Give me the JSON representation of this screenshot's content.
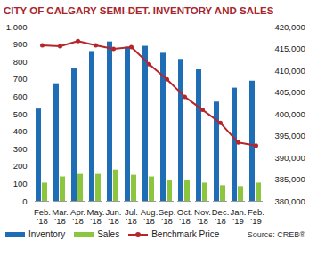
{
  "chart_data": {
    "type": "bar",
    "title": "CITY OF CALGARY SEMI-DET. INVENTORY AND SALES",
    "categories": [
      "Feb.\n'18",
      "Mar.\n'18",
      "Apr.\n'18",
      "May.\n'18",
      "Jun.\n'18",
      "Jul.\n'18",
      "Aug.\n'18",
      "Sep.\n'18",
      "Oct.\n'18",
      "Nov.\n'18",
      "Dec.\n'18",
      "Jan.\n'19",
      "Feb.\n'19"
    ],
    "series": [
      {
        "name": "Inventory",
        "color": "#1f6db5",
        "values": [
          530,
          675,
          760,
          860,
          915,
          885,
          890,
          850,
          815,
          755,
          570,
          650,
          690
        ]
      },
      {
        "name": "Sales",
        "color": "#8cc63f",
        "values": [
          105,
          140,
          155,
          155,
          180,
          150,
          140,
          120,
          120,
          105,
          90,
          85,
          105
        ]
      },
      {
        "name": "Benchmark Price",
        "type": "line",
        "marker": "circle",
        "color": "#b5262b",
        "axis": "y2",
        "values": [
          415800,
          415600,
          416800,
          415800,
          415000,
          415400,
          411500,
          408000,
          404000,
          401000,
          398000,
          393500,
          392800
        ]
      }
    ],
    "ylim": [
      0,
      1000
    ],
    "yticks": [
      0,
      100,
      200,
      300,
      400,
      500,
      600,
      700,
      800,
      900,
      {
        "value": 1000,
        "label": "1,000"
      }
    ],
    "y2lim": [
      380000,
      420000
    ],
    "y2ticks": [
      {
        "value": 380000,
        "label": "380,000"
      },
      {
        "value": 385000,
        "label": "385,000"
      },
      {
        "value": 390000,
        "label": "390,000"
      },
      {
        "value": 395000,
        "label": "395,000"
      },
      {
        "value": 400000,
        "label": "400,000"
      },
      {
        "value": 405000,
        "label": "405,000"
      },
      {
        "value": 410000,
        "label": "410,000"
      },
      {
        "value": 415000,
        "label": "415,000"
      },
      {
        "value": 420000,
        "label": "420,000"
      }
    ],
    "grid": false,
    "legend": "bottom",
    "caption": "Source: CREB®"
  }
}
